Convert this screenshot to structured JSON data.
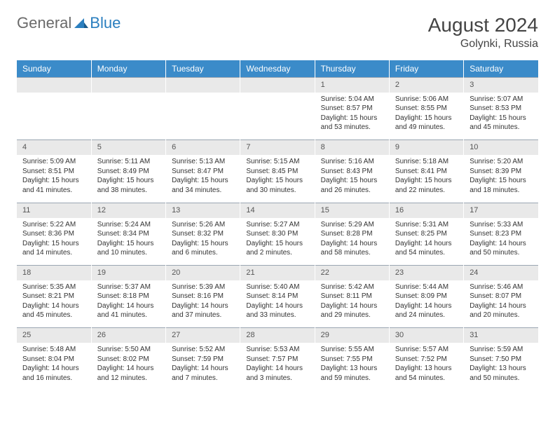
{
  "brand": {
    "part1": "General",
    "part2": "Blue"
  },
  "header": {
    "title": "August 2024",
    "location": "Golynki, Russia"
  },
  "colors": {
    "header_bg": "#3b8bc9",
    "daynum_bg": "#e9e9e9",
    "border": "#9aa6b2",
    "text": "#333333",
    "brand_gray": "#6a6a6a",
    "brand_blue": "#2b7fbf"
  },
  "day_headers": [
    "Sunday",
    "Monday",
    "Tuesday",
    "Wednesday",
    "Thursday",
    "Friday",
    "Saturday"
  ],
  "weeks": [
    {
      "nums": [
        "",
        "",
        "",
        "",
        "1",
        "2",
        "3"
      ],
      "cells": [
        null,
        null,
        null,
        null,
        {
          "sunrise": "Sunrise: 5:04 AM",
          "sunset": "Sunset: 8:57 PM",
          "dl1": "Daylight: 15 hours",
          "dl2": "and 53 minutes."
        },
        {
          "sunrise": "Sunrise: 5:06 AM",
          "sunset": "Sunset: 8:55 PM",
          "dl1": "Daylight: 15 hours",
          "dl2": "and 49 minutes."
        },
        {
          "sunrise": "Sunrise: 5:07 AM",
          "sunset": "Sunset: 8:53 PM",
          "dl1": "Daylight: 15 hours",
          "dl2": "and 45 minutes."
        }
      ]
    },
    {
      "nums": [
        "4",
        "5",
        "6",
        "7",
        "8",
        "9",
        "10"
      ],
      "cells": [
        {
          "sunrise": "Sunrise: 5:09 AM",
          "sunset": "Sunset: 8:51 PM",
          "dl1": "Daylight: 15 hours",
          "dl2": "and 41 minutes."
        },
        {
          "sunrise": "Sunrise: 5:11 AM",
          "sunset": "Sunset: 8:49 PM",
          "dl1": "Daylight: 15 hours",
          "dl2": "and 38 minutes."
        },
        {
          "sunrise": "Sunrise: 5:13 AM",
          "sunset": "Sunset: 8:47 PM",
          "dl1": "Daylight: 15 hours",
          "dl2": "and 34 minutes."
        },
        {
          "sunrise": "Sunrise: 5:15 AM",
          "sunset": "Sunset: 8:45 PM",
          "dl1": "Daylight: 15 hours",
          "dl2": "and 30 minutes."
        },
        {
          "sunrise": "Sunrise: 5:16 AM",
          "sunset": "Sunset: 8:43 PM",
          "dl1": "Daylight: 15 hours",
          "dl2": "and 26 minutes."
        },
        {
          "sunrise": "Sunrise: 5:18 AM",
          "sunset": "Sunset: 8:41 PM",
          "dl1": "Daylight: 15 hours",
          "dl2": "and 22 minutes."
        },
        {
          "sunrise": "Sunrise: 5:20 AM",
          "sunset": "Sunset: 8:39 PM",
          "dl1": "Daylight: 15 hours",
          "dl2": "and 18 minutes."
        }
      ]
    },
    {
      "nums": [
        "11",
        "12",
        "13",
        "14",
        "15",
        "16",
        "17"
      ],
      "cells": [
        {
          "sunrise": "Sunrise: 5:22 AM",
          "sunset": "Sunset: 8:36 PM",
          "dl1": "Daylight: 15 hours",
          "dl2": "and 14 minutes."
        },
        {
          "sunrise": "Sunrise: 5:24 AM",
          "sunset": "Sunset: 8:34 PM",
          "dl1": "Daylight: 15 hours",
          "dl2": "and 10 minutes."
        },
        {
          "sunrise": "Sunrise: 5:26 AM",
          "sunset": "Sunset: 8:32 PM",
          "dl1": "Daylight: 15 hours",
          "dl2": "and 6 minutes."
        },
        {
          "sunrise": "Sunrise: 5:27 AM",
          "sunset": "Sunset: 8:30 PM",
          "dl1": "Daylight: 15 hours",
          "dl2": "and 2 minutes."
        },
        {
          "sunrise": "Sunrise: 5:29 AM",
          "sunset": "Sunset: 8:28 PM",
          "dl1": "Daylight: 14 hours",
          "dl2": "and 58 minutes."
        },
        {
          "sunrise": "Sunrise: 5:31 AM",
          "sunset": "Sunset: 8:25 PM",
          "dl1": "Daylight: 14 hours",
          "dl2": "and 54 minutes."
        },
        {
          "sunrise": "Sunrise: 5:33 AM",
          "sunset": "Sunset: 8:23 PM",
          "dl1": "Daylight: 14 hours",
          "dl2": "and 50 minutes."
        }
      ]
    },
    {
      "nums": [
        "18",
        "19",
        "20",
        "21",
        "22",
        "23",
        "24"
      ],
      "cells": [
        {
          "sunrise": "Sunrise: 5:35 AM",
          "sunset": "Sunset: 8:21 PM",
          "dl1": "Daylight: 14 hours",
          "dl2": "and 45 minutes."
        },
        {
          "sunrise": "Sunrise: 5:37 AM",
          "sunset": "Sunset: 8:18 PM",
          "dl1": "Daylight: 14 hours",
          "dl2": "and 41 minutes."
        },
        {
          "sunrise": "Sunrise: 5:39 AM",
          "sunset": "Sunset: 8:16 PM",
          "dl1": "Daylight: 14 hours",
          "dl2": "and 37 minutes."
        },
        {
          "sunrise": "Sunrise: 5:40 AM",
          "sunset": "Sunset: 8:14 PM",
          "dl1": "Daylight: 14 hours",
          "dl2": "and 33 minutes."
        },
        {
          "sunrise": "Sunrise: 5:42 AM",
          "sunset": "Sunset: 8:11 PM",
          "dl1": "Daylight: 14 hours",
          "dl2": "and 29 minutes."
        },
        {
          "sunrise": "Sunrise: 5:44 AM",
          "sunset": "Sunset: 8:09 PM",
          "dl1": "Daylight: 14 hours",
          "dl2": "and 24 minutes."
        },
        {
          "sunrise": "Sunrise: 5:46 AM",
          "sunset": "Sunset: 8:07 PM",
          "dl1": "Daylight: 14 hours",
          "dl2": "and 20 minutes."
        }
      ]
    },
    {
      "nums": [
        "25",
        "26",
        "27",
        "28",
        "29",
        "30",
        "31"
      ],
      "cells": [
        {
          "sunrise": "Sunrise: 5:48 AM",
          "sunset": "Sunset: 8:04 PM",
          "dl1": "Daylight: 14 hours",
          "dl2": "and 16 minutes."
        },
        {
          "sunrise": "Sunrise: 5:50 AM",
          "sunset": "Sunset: 8:02 PM",
          "dl1": "Daylight: 14 hours",
          "dl2": "and 12 minutes."
        },
        {
          "sunrise": "Sunrise: 5:52 AM",
          "sunset": "Sunset: 7:59 PM",
          "dl1": "Daylight: 14 hours",
          "dl2": "and 7 minutes."
        },
        {
          "sunrise": "Sunrise: 5:53 AM",
          "sunset": "Sunset: 7:57 PM",
          "dl1": "Daylight: 14 hours",
          "dl2": "and 3 minutes."
        },
        {
          "sunrise": "Sunrise: 5:55 AM",
          "sunset": "Sunset: 7:55 PM",
          "dl1": "Daylight: 13 hours",
          "dl2": "and 59 minutes."
        },
        {
          "sunrise": "Sunrise: 5:57 AM",
          "sunset": "Sunset: 7:52 PM",
          "dl1": "Daylight: 13 hours",
          "dl2": "and 54 minutes."
        },
        {
          "sunrise": "Sunrise: 5:59 AM",
          "sunset": "Sunset: 7:50 PM",
          "dl1": "Daylight: 13 hours",
          "dl2": "and 50 minutes."
        }
      ]
    }
  ]
}
